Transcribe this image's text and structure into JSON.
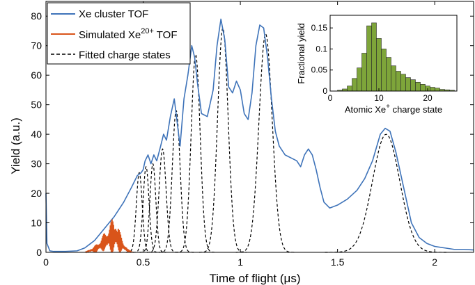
{
  "chart_data": [
    {
      "type": "line",
      "xlabel_prefix": "Time of flight (",
      "xlabel_unit": "μs",
      "xlabel_suffix": ")",
      "ylabel": "Yield (a.u.)",
      "xlim": [
        0,
        2.2
      ],
      "ylim": [
        0,
        85
      ],
      "x_ticks": [
        0,
        0.5,
        1,
        1.5,
        2
      ],
      "y_ticks": [
        0,
        10,
        20,
        30,
        40,
        50,
        60,
        70,
        80
      ],
      "grid": false,
      "legend_position": "top-left",
      "legend": [
        {
          "text": "Xe cluster TOF",
          "color": "#3E73B9",
          "style": "solid"
        },
        {
          "text_pre": "Simulated Xe",
          "text_sup": "20+",
          "text_post": " TOF",
          "color": "#D9541A",
          "style": "solid"
        },
        {
          "text": "Fitted charge states",
          "color": "#000000",
          "style": "dashed"
        }
      ],
      "series": [
        {
          "name": "Xe cluster TOF",
          "color": "#3E73B9",
          "x": [
            0,
            0.005,
            0.02,
            0.04,
            0.1,
            0.16,
            0.2,
            0.25,
            0.3,
            0.35,
            0.4,
            0.44,
            0.47,
            0.49,
            0.5,
            0.51,
            0.525,
            0.54,
            0.555,
            0.57,
            0.59,
            0.605,
            0.62,
            0.64,
            0.66,
            0.675,
            0.69,
            0.71,
            0.73,
            0.75,
            0.765,
            0.78,
            0.8,
            0.83,
            0.86,
            0.88,
            0.9,
            0.92,
            0.94,
            0.96,
            0.98,
            1.0,
            1.02,
            1.04,
            1.06,
            1.08,
            1.1,
            1.12,
            1.14,
            1.16,
            1.18,
            1.2,
            1.23,
            1.26,
            1.29,
            1.31,
            1.33,
            1.35,
            1.37,
            1.39,
            1.41,
            1.43,
            1.46,
            1.5,
            1.55,
            1.6,
            1.64,
            1.68,
            1.72,
            1.745,
            1.77,
            1.8,
            1.84,
            1.88,
            1.92,
            1.96,
            2.0,
            2.05,
            2.1,
            2.15,
            2.2
          ],
          "y": [
            20,
            3,
            0.5,
            0.3,
            0.3,
            0.5,
            1.5,
            4,
            8,
            12,
            17,
            22,
            26,
            27,
            28,
            31,
            33,
            30,
            33,
            31,
            36,
            40,
            38,
            46,
            52,
            44,
            36,
            52,
            60,
            70,
            66,
            57,
            47,
            46,
            55,
            70,
            79,
            72,
            56,
            54,
            58,
            55,
            47,
            45,
            54,
            70,
            77,
            76,
            66,
            52,
            41,
            36,
            33,
            32,
            31,
            29,
            33,
            35,
            33,
            28,
            22,
            17,
            15,
            16,
            18,
            21,
            25,
            31,
            40,
            42,
            41,
            34,
            22,
            10,
            5,
            3,
            2,
            1.5,
            1,
            1,
            0.8
          ]
        },
        {
          "name_pre": "Simulated Xe",
          "name_sup": "20+",
          "name_post": " TOF",
          "color": "#D9541A",
          "x": [
            0.2,
            0.24,
            0.28,
            0.31,
            0.33,
            0.34,
            0.35,
            0.36,
            0.37,
            0.38,
            0.4,
            0.42,
            0.45
          ],
          "y": [
            0,
            1.5,
            4,
            6,
            9,
            10,
            11,
            10,
            9,
            6,
            3,
            1,
            0
          ]
        },
        {
          "name": "Fitted charge states",
          "color": "#000000",
          "dashed": true,
          "components": [
            {
              "center": 0.48,
              "height": 27,
              "sigma": 0.015
            },
            {
              "center": 0.515,
              "height": 29,
              "sigma": 0.015
            },
            {
              "center": 0.55,
              "height": 30,
              "sigma": 0.015
            },
            {
              "center": 0.6,
              "height": 35,
              "sigma": 0.018
            },
            {
              "center": 0.67,
              "height": 48,
              "sigma": 0.02
            },
            {
              "center": 0.77,
              "height": 67,
              "sigma": 0.023
            },
            {
              "center": 0.91,
              "height": 76,
              "sigma": 0.027
            },
            {
              "center": 1.13,
              "height": 74,
              "sigma": 0.034
            },
            {
              "center": 1.75,
              "height": 40,
              "sigma": 0.07
            }
          ]
        }
      ]
    },
    {
      "type": "bar",
      "inset": true,
      "position": "top-right",
      "xlabel_pre": "Atomic Xe",
      "xlabel_sup": "+",
      "xlabel_post": " charge state",
      "ylabel": "Fractional yield",
      "xlim": [
        0,
        26
      ],
      "ylim": [
        0,
        0.18
      ],
      "x_ticks": [
        0,
        10,
        20
      ],
      "y_ticks": [
        "0",
        "0.05",
        "0.1",
        "0.15"
      ],
      "y_tick_values": [
        0,
        0.05,
        0.1,
        0.15
      ],
      "bar_color": "#7EA53A",
      "categories": [
        2,
        3,
        4,
        5,
        6,
        7,
        8,
        9,
        10,
        11,
        12,
        13,
        14,
        15,
        16,
        17,
        18,
        19,
        20,
        21,
        22,
        23,
        24,
        25
      ],
      "values": [
        0.002,
        0.005,
        0.012,
        0.03,
        0.055,
        0.09,
        0.155,
        0.162,
        0.125,
        0.1,
        0.08,
        0.06,
        0.047,
        0.04,
        0.032,
        0.027,
        0.021,
        0.016,
        0.012,
        0.009,
        0.007,
        0.004,
        0.003,
        0.002
      ]
    }
  ]
}
